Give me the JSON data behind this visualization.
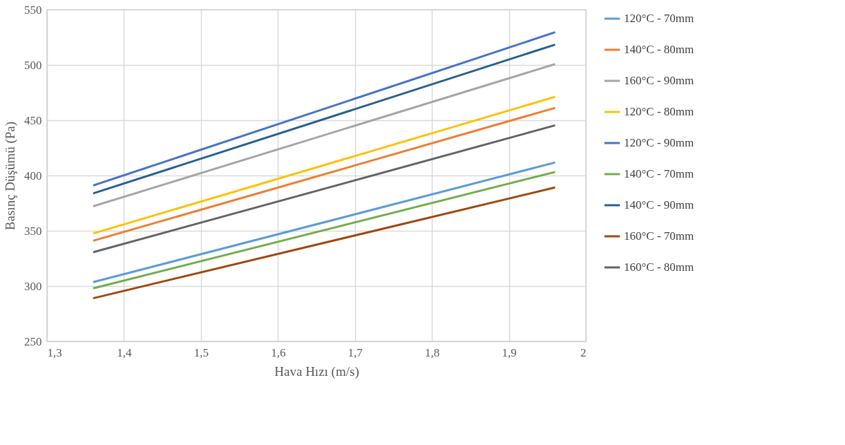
{
  "chart_data": {
    "type": "line",
    "xlabel": "Hava Hızı (m/s)",
    "ylabel": "Basınç Düşümü (Pa)",
    "xlim": [
      1.3,
      2
    ],
    "ylim": [
      250,
      550
    ],
    "xticks": [
      {
        "value": 1.3,
        "label": "1,3"
      },
      {
        "value": 1.4,
        "label": "1,4"
      },
      {
        "value": 1.5,
        "label": "1,5"
      },
      {
        "value": 1.6,
        "label": "1,6"
      },
      {
        "value": 1.7,
        "label": "1,7"
      },
      {
        "value": 1.8,
        "label": "1,8"
      },
      {
        "value": 1.9,
        "label": "1,9"
      },
      2
    ],
    "yticks": [
      250,
      300,
      350,
      400,
      450,
      500,
      550
    ],
    "grid": true,
    "legend": "right",
    "marker": "none",
    "line_style": "solid",
    "x": [
      1.36,
      1.96
    ],
    "series": [
      {
        "name": "120°C - 70mm",
        "color": "#5b9bd5",
        "values": [
          303.6,
          411.8
        ]
      },
      {
        "name": "140°C - 80mm",
        "color": "#ed7d31",
        "values": [
          341,
          461.2
        ]
      },
      {
        "name": "160°C - 90mm",
        "color": "#a5a5a5",
        "values": [
          372.2,
          500.8
        ]
      },
      {
        "name": "120°C - 80mm",
        "color": "#ffc000",
        "values": [
          347.6,
          471.2
        ]
      },
      {
        "name": "120°C - 90mm",
        "color": "#4472c4",
        "values": [
          391,
          529.6
        ]
      },
      {
        "name": "140°C - 70mm",
        "color": "#70ad47",
        "values": [
          298,
          403.2
        ]
      },
      {
        "name": "140°C - 90mm",
        "color": "#255e91",
        "values": [
          383.8,
          518.4
        ]
      },
      {
        "name": "160°C - 70mm",
        "color": "#9e480e",
        "values": [
          289,
          389.2
        ]
      },
      {
        "name": "160°C - 80mm",
        "color": "#636363",
        "values": [
          330.6,
          445.4
        ]
      }
    ]
  }
}
